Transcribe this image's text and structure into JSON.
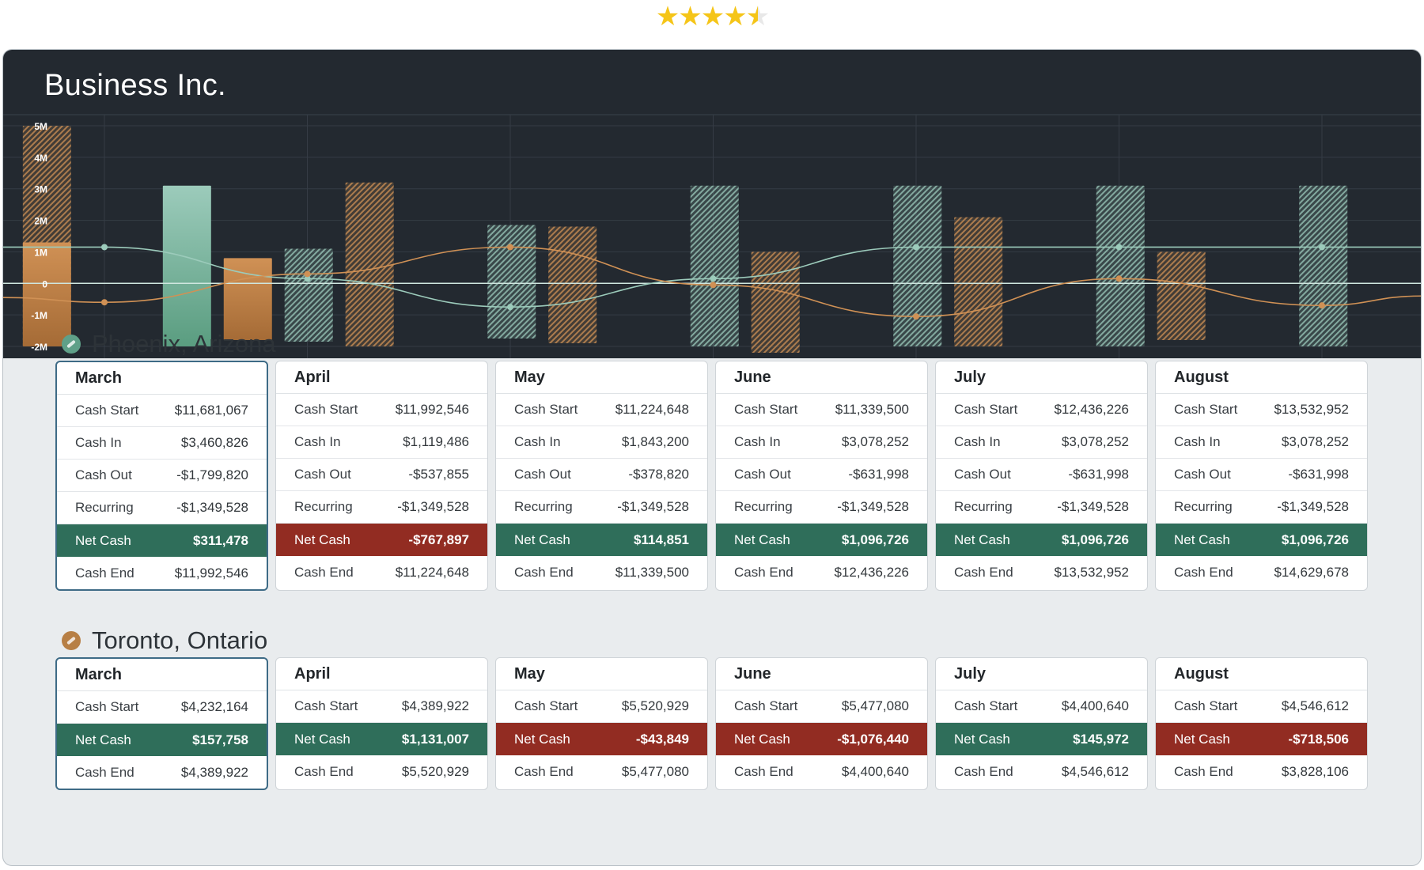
{
  "rating": {
    "value": 4.5,
    "max": 5,
    "colors": {
      "filled": "#f5c518",
      "empty": "#e8e8e8"
    }
  },
  "app": {
    "title": "Business Inc.",
    "colors": {
      "header_bg": "#232930",
      "body_bg": "#e9ecee",
      "positive": "#2f6e5a",
      "negative": "#922c22",
      "teal": "#9ccbbb",
      "orange": "#d09155"
    }
  },
  "chart_data": {
    "type": "bar",
    "y_ticks": [
      "5M",
      "4M",
      "3M",
      "2M",
      "1M",
      "0",
      "-1M",
      "-2M"
    ],
    "ylim": [
      -2000000,
      5000000
    ],
    "grid": true,
    "slots": 7,
    "bars": [
      {
        "slot": 0,
        "offset": 0.13,
        "from": -2000000,
        "to": 5000000,
        "color": "orange",
        "style": "hatched"
      },
      {
        "slot": 0,
        "offset": 0.13,
        "from": -2000000,
        "to": 1300000,
        "color": "orange",
        "style": "solid"
      },
      {
        "slot": 0,
        "offset": 0.82,
        "from": -2000000,
        "to": 3100000,
        "color": "teal",
        "style": "solid"
      },
      {
        "slot": 1,
        "offset": 0.12,
        "from": -1800000,
        "to": 800000,
        "color": "orange",
        "style": "solid"
      },
      {
        "slot": 1,
        "offset": 0.42,
        "from": -1850000,
        "to": 1100000,
        "color": "teal",
        "style": "hatched"
      },
      {
        "slot": 1,
        "offset": 0.72,
        "from": -2000000,
        "to": 3200000,
        "color": "orange",
        "style": "hatched"
      },
      {
        "slot": 2,
        "offset": 0.42,
        "from": -1750000,
        "to": 1850000,
        "color": "teal",
        "style": "hatched"
      },
      {
        "slot": 2,
        "offset": 0.72,
        "from": -1900000,
        "to": 1800000,
        "color": "orange",
        "style": "hatched"
      },
      {
        "slot": 3,
        "offset": 0.42,
        "from": -2000000,
        "to": 3100000,
        "color": "teal",
        "style": "hatched"
      },
      {
        "slot": 3,
        "offset": 0.72,
        "from": -2200000,
        "to": 1000000,
        "color": "orange",
        "style": "hatched"
      },
      {
        "slot": 4,
        "offset": 0.42,
        "from": -2000000,
        "to": 3100000,
        "color": "teal",
        "style": "hatched"
      },
      {
        "slot": 4,
        "offset": 0.72,
        "from": -2000000,
        "to": 2100000,
        "color": "orange",
        "style": "hatched"
      },
      {
        "slot": 5,
        "offset": 0.42,
        "from": -2000000,
        "to": 3100000,
        "color": "teal",
        "style": "hatched"
      },
      {
        "slot": 5,
        "offset": 0.72,
        "from": -1800000,
        "to": 1000000,
        "color": "orange",
        "style": "hatched"
      },
      {
        "slot": 6,
        "offset": 0.42,
        "from": -2000000,
        "to": 3100000,
        "color": "teal",
        "style": "hatched"
      }
    ],
    "series": [
      {
        "color": "teal",
        "points": [
          [
            -0.5,
            1150000
          ],
          [
            0,
            1150000
          ],
          [
            1,
            150000
          ],
          [
            2,
            -750000
          ],
          [
            3,
            150000
          ],
          [
            4,
            1150000
          ],
          [
            5,
            1150000
          ],
          [
            6,
            1150000
          ],
          [
            6.5,
            1150000
          ]
        ]
      },
      {
        "color": "orange",
        "points": [
          [
            -0.5,
            -450000
          ],
          [
            0,
            -600000
          ],
          [
            1,
            300000
          ],
          [
            2,
            1150000
          ],
          [
            3,
            -50000
          ],
          [
            4,
            -1050000
          ],
          [
            5,
            150000
          ],
          [
            6,
            -700000
          ],
          [
            6.5,
            -400000
          ]
        ]
      }
    ]
  },
  "locations": [
    {
      "name": "Phoenix, Arizona",
      "icon": "location-badge-icon",
      "icon_color": "#5fa088",
      "months": [
        {
          "month": "March",
          "selected": true,
          "rows": [
            {
              "label": "Cash Start",
              "value": "$11,681,067"
            },
            {
              "label": "Cash In",
              "value": "$3,460,826"
            },
            {
              "label": "Cash Out",
              "value": "-$1,799,820"
            },
            {
              "label": "Recurring",
              "value": "-$1,349,528"
            },
            {
              "label": "Net Cash",
              "value": "$311,478",
              "net": "pos"
            },
            {
              "label": "Cash End",
              "value": "$11,992,546"
            }
          ]
        },
        {
          "month": "April",
          "rows": [
            {
              "label": "Cash Start",
              "value": "$11,992,546"
            },
            {
              "label": "Cash In",
              "value": "$1,119,486"
            },
            {
              "label": "Cash Out",
              "value": "-$537,855"
            },
            {
              "label": "Recurring",
              "value": "-$1,349,528"
            },
            {
              "label": "Net Cash",
              "value": "-$767,897",
              "net": "neg"
            },
            {
              "label": "Cash End",
              "value": "$11,224,648"
            }
          ]
        },
        {
          "month": "May",
          "rows": [
            {
              "label": "Cash Start",
              "value": "$11,224,648"
            },
            {
              "label": "Cash In",
              "value": "$1,843,200"
            },
            {
              "label": "Cash Out",
              "value": "-$378,820"
            },
            {
              "label": "Recurring",
              "value": "-$1,349,528"
            },
            {
              "label": "Net Cash",
              "value": "$114,851",
              "net": "pos"
            },
            {
              "label": "Cash End",
              "value": "$11,339,500"
            }
          ]
        },
        {
          "month": "June",
          "rows": [
            {
              "label": "Cash Start",
              "value": "$11,339,500"
            },
            {
              "label": "Cash In",
              "value": "$3,078,252"
            },
            {
              "label": "Cash Out",
              "value": "-$631,998"
            },
            {
              "label": "Recurring",
              "value": "-$1,349,528"
            },
            {
              "label": "Net Cash",
              "value": "$1,096,726",
              "net": "pos"
            },
            {
              "label": "Cash End",
              "value": "$12,436,226"
            }
          ]
        },
        {
          "month": "July",
          "rows": [
            {
              "label": "Cash Start",
              "value": "$12,436,226"
            },
            {
              "label": "Cash In",
              "value": "$3,078,252"
            },
            {
              "label": "Cash Out",
              "value": "-$631,998"
            },
            {
              "label": "Recurring",
              "value": "-$1,349,528"
            },
            {
              "label": "Net Cash",
              "value": "$1,096,726",
              "net": "pos"
            },
            {
              "label": "Cash End",
              "value": "$13,532,952"
            }
          ]
        },
        {
          "month": "August",
          "rows": [
            {
              "label": "Cash Start",
              "value": "$13,532,952"
            },
            {
              "label": "Cash In",
              "value": "$3,078,252"
            },
            {
              "label": "Cash Out",
              "value": "-$631,998"
            },
            {
              "label": "Recurring",
              "value": "-$1,349,528"
            },
            {
              "label": "Net Cash",
              "value": "$1,096,726",
              "net": "pos"
            },
            {
              "label": "Cash End",
              "value": "$14,629,678"
            }
          ]
        }
      ]
    },
    {
      "name": "Toronto, Ontario",
      "icon": "location-badge-icon",
      "icon_color": "#b77f45",
      "months": [
        {
          "month": "March",
          "selected": true,
          "rows": [
            {
              "label": "Cash Start",
              "value": "$4,232,164"
            },
            {
              "label": "Net Cash",
              "value": "$157,758",
              "net": "pos"
            },
            {
              "label": "Cash End",
              "value": "$4,389,922"
            }
          ]
        },
        {
          "month": "April",
          "rows": [
            {
              "label": "Cash Start",
              "value": "$4,389,922"
            },
            {
              "label": "Net Cash",
              "value": "$1,131,007",
              "net": "pos"
            },
            {
              "label": "Cash End",
              "value": "$5,520,929"
            }
          ]
        },
        {
          "month": "May",
          "rows": [
            {
              "label": "Cash Start",
              "value": "$5,520,929"
            },
            {
              "label": "Net Cash",
              "value": "-$43,849",
              "net": "neg"
            },
            {
              "label": "Cash End",
              "value": "$5,477,080"
            }
          ]
        },
        {
          "month": "June",
          "rows": [
            {
              "label": "Cash Start",
              "value": "$5,477,080"
            },
            {
              "label": "Net Cash",
              "value": "-$1,076,440",
              "net": "neg"
            },
            {
              "label": "Cash End",
              "value": "$4,400,640"
            }
          ]
        },
        {
          "month": "July",
          "rows": [
            {
              "label": "Cash Start",
              "value": "$4,400,640"
            },
            {
              "label": "Net Cash",
              "value": "$145,972",
              "net": "pos"
            },
            {
              "label": "Cash End",
              "value": "$4,546,612"
            }
          ]
        },
        {
          "month": "August",
          "rows": [
            {
              "label": "Cash Start",
              "value": "$4,546,612"
            },
            {
              "label": "Net Cash",
              "value": "-$718,506",
              "net": "neg"
            },
            {
              "label": "Cash End",
              "value": "$3,828,106"
            }
          ]
        }
      ]
    }
  ]
}
